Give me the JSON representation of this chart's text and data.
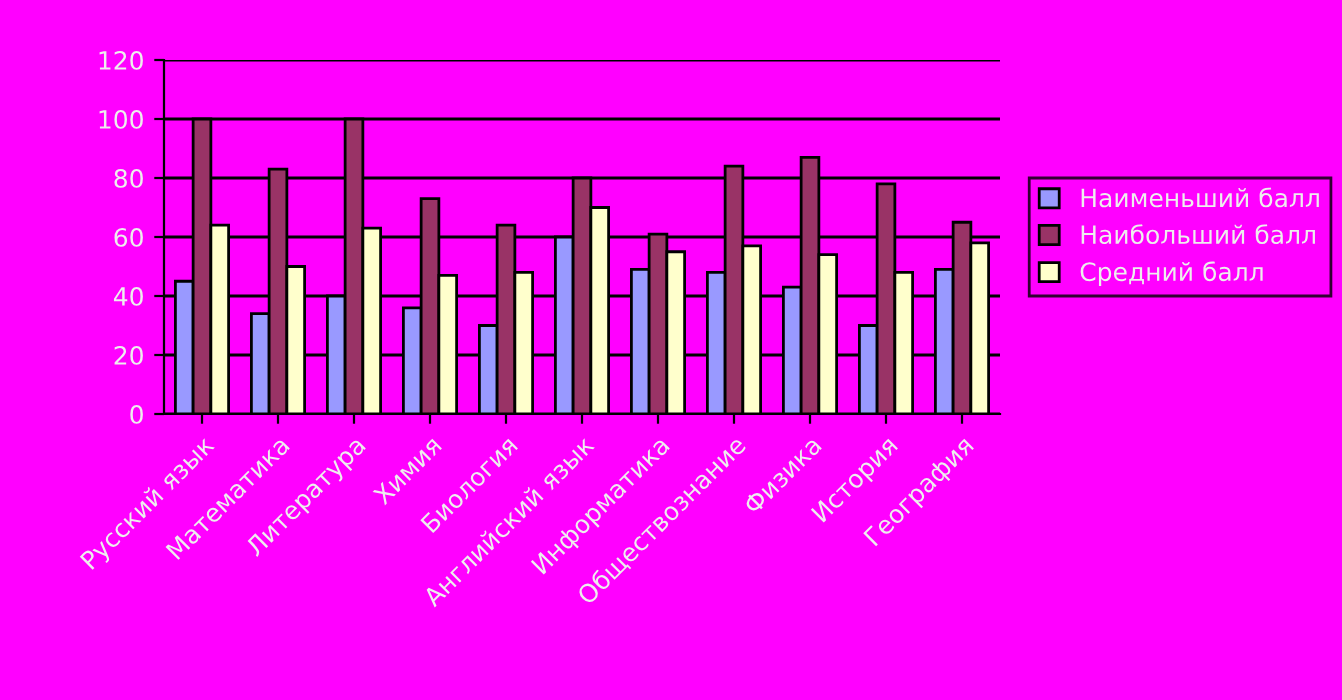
{
  "chart_data": {
    "type": "bar",
    "categories": [
      "Русский язык",
      "Математика",
      "Литература",
      "Химия",
      "Биология",
      "Английский язык",
      "Информатика",
      "Обществознание",
      "Физика",
      "История",
      "География"
    ],
    "series": [
      {
        "name": "Наименьший балл",
        "color": "#9999ff",
        "values": [
          45,
          34,
          40,
          36,
          30,
          60,
          49,
          48,
          43,
          30,
          49
        ]
      },
      {
        "name": "Наибольший балл",
        "color": "#993366",
        "values": [
          100,
          83,
          100,
          73,
          64,
          80,
          61,
          84,
          87,
          78,
          65
        ]
      },
      {
        "name": "Средний балл",
        "color": "#ffffcc",
        "values": [
          64,
          50,
          63,
          47,
          48,
          70,
          55,
          57,
          54,
          48,
          58
        ]
      }
    ],
    "ylim": [
      0,
      120
    ],
    "yticks": [
      0,
      20,
      40,
      60,
      80,
      100,
      120
    ],
    "grid": "y",
    "legend": "right"
  }
}
